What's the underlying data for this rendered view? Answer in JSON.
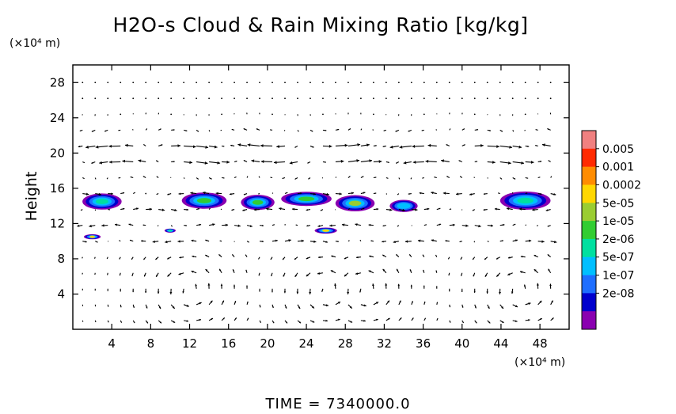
{
  "chart_data": {
    "type": "heatmap",
    "title": "H2O-s Cloud & Rain Mixing Ratio [kg/kg]",
    "ylabel": "Height",
    "y_unit": "(×10⁴ m)",
    "x_unit": "(×10⁴ m)",
    "xlim": [
      0,
      51
    ],
    "ylim": [
      0,
      30
    ],
    "x_ticks": [
      "4",
      "8",
      "12",
      "16",
      "20",
      "24",
      "28",
      "32",
      "36",
      "40",
      "44",
      "48"
    ],
    "y_ticks": [
      "4",
      "8",
      "12",
      "16",
      "20",
      "24",
      "28"
    ],
    "colorbar": {
      "labels": [
        "0.005",
        "0.001",
        "0.0002",
        "5e-05",
        "1e-05",
        "2e-06",
        "5e-07",
        "1e-07",
        "2e-08"
      ],
      "colors": [
        "#f08080",
        "#ff2a00",
        "#ff8c00",
        "#ffd700",
        "#9acd32",
        "#32cd32",
        "#00e0a0",
        "#00bfff",
        "#1e6eff",
        "#0000cd",
        "#8a00b0"
      ]
    },
    "cloud_regions": [
      {
        "x": 3,
        "y": 14.5,
        "w": 3.5,
        "h": 1.6,
        "level": 6
      },
      {
        "x": 13.5,
        "y": 14.6,
        "w": 4,
        "h": 1.6,
        "level": 5
      },
      {
        "x": 19,
        "y": 14.4,
        "w": 3,
        "h": 1.5,
        "level": 5
      },
      {
        "x": 24,
        "y": 14.8,
        "w": 4.5,
        "h": 1.4,
        "level": 5
      },
      {
        "x": 29,
        "y": 14.3,
        "w": 3.5,
        "h": 1.6,
        "level": 4
      },
      {
        "x": 34,
        "y": 14.0,
        "w": 2.5,
        "h": 1.2,
        "level": 7
      },
      {
        "x": 46.5,
        "y": 14.6,
        "w": 4.5,
        "h": 1.8,
        "level": 6
      },
      {
        "x": 2,
        "y": 10.5,
        "w": 1.5,
        "h": 0.5,
        "level": 3
      },
      {
        "x": 26,
        "y": 11.2,
        "w": 2,
        "h": 0.6,
        "level": 3
      },
      {
        "x": 10,
        "y": 11.2,
        "w": 1,
        "h": 0.4,
        "level": 6
      }
    ],
    "wind_field": {
      "description": "velocity vectors overlaid",
      "upper_jet_altitude": 20,
      "lower_cells_centers_x": [
        12,
        26,
        30,
        46
      ]
    }
  },
  "footer": {
    "time_label": "TIME = 7340000.0"
  }
}
